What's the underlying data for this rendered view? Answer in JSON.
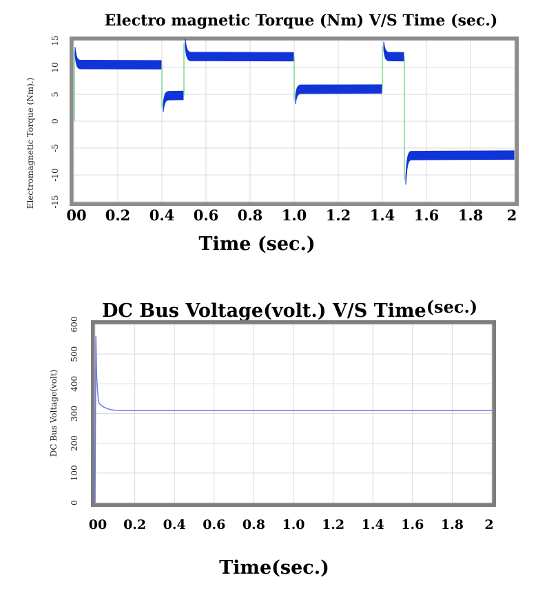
{
  "chart_data": [
    {
      "type": "line",
      "title": "Electro magnetic Torque (Nm) V/S Time (sec.)",
      "xlabel": "Time (sec.)",
      "ylabel": "Electromagnetic  Torque  (Nm).)",
      "xlim": [
        0,
        2
      ],
      "ylim": [
        -15,
        15
      ],
      "x_tick_labels": [
        "00",
        "0.2",
        "0.4",
        "0.6",
        "0.8",
        "1.0",
        "1.2",
        "1.4",
        "1.6",
        "1.8",
        "2"
      ],
      "x_tick_values": [
        0,
        0.2,
        0.4,
        0.6,
        0.8,
        1.0,
        1.2,
        1.4,
        1.6,
        1.8,
        2.0
      ],
      "y_tick_labels": [
        "-15",
        "-10",
        "-5",
        "0",
        "5",
        "10",
        "15"
      ],
      "y_tick_values": [
        -15,
        -10,
        -5,
        0,
        5,
        10,
        15
      ],
      "grid": true,
      "colors": {
        "band": "#1034d8",
        "transition": "#7bd88a",
        "frame": "#8c8c8c",
        "grid": "#d9d9d9"
      },
      "series": [
        {
          "segments": [
            {
              "x_start": 0.0,
              "x_end": 0.4,
              "peak": 13.0,
              "value": 10.5
            },
            {
              "x_start": 0.4,
              "x_end": 0.5,
              "peak": 2.5,
              "value": 4.8
            },
            {
              "x_start": 0.5,
              "x_end": 1.0,
              "peak": 14.5,
              "value": 12.0
            },
            {
              "x_start": 1.0,
              "x_end": 1.4,
              "peak": 4.0,
              "value": 6.0
            },
            {
              "x_start": 1.4,
              "x_end": 1.5,
              "peak": 14.0,
              "value": 12.0
            },
            {
              "x_start": 1.5,
              "x_end": 2.0,
              "peak": -11.0,
              "value": -6.3
            }
          ],
          "ripple": 0.8
        }
      ]
    },
    {
      "type": "line",
      "title": "DC Bus Voltage(volt.) V/S Time",
      "title_suffix": "(sec.)",
      "xlabel": "Time(sec.)",
      "ylabel": "DC  Bus Voltage(volt)",
      "xlim": [
        0,
        2
      ],
      "ylim": [
        0,
        600
      ],
      "x_tick_labels": [
        "00",
        "0.2",
        "0.4",
        "0.6",
        "0.8",
        "1.0",
        "1.2",
        "1.4",
        "1.6",
        "1.8",
        "2"
      ],
      "x_tick_values": [
        0,
        0.2,
        0.4,
        0.6,
        0.8,
        1.0,
        1.2,
        1.4,
        1.6,
        1.8,
        2.0
      ],
      "y_tick_labels": [
        "0",
        "100",
        "200",
        "300",
        "400",
        "500",
        "600"
      ],
      "y_tick_values": [
        0,
        100,
        200,
        300,
        400,
        500,
        600
      ],
      "grid": true,
      "colors": {
        "line": "#6f78e8",
        "frame": "#7d7d7d",
        "grid": "#d9d9d9"
      },
      "series": [
        {
          "x": [
            0,
            0.004,
            0.008,
            0.012,
            0.016,
            0.02,
            0.03,
            0.04,
            0.06,
            0.08,
            0.1,
            0.15,
            0.2,
            0.5,
            1.0,
            1.5,
            2.0
          ],
          "y": [
            0,
            560,
            430,
            380,
            350,
            335,
            328,
            323,
            317,
            313,
            311,
            310,
            310,
            310,
            310,
            310,
            310
          ]
        }
      ]
    }
  ]
}
